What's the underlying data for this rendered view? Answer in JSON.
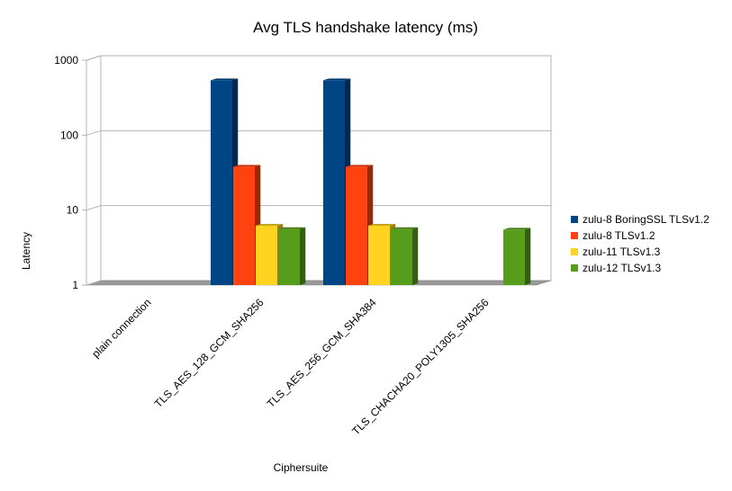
{
  "chart_data": {
    "type": "bar",
    "title": "Avg TLS handshake latency (ms)",
    "xlabel": "Ciphersuite",
    "ylabel": "Latency",
    "yscale": "log",
    "ylim": [
      1,
      1000
    ],
    "yticks": [
      1,
      10,
      100,
      1000
    ],
    "grid": true,
    "legend_position": "right",
    "categories": [
      "plain connection",
      "TLS_AES_128_GCM_SHA256",
      "TLS_AES_256_GCM_SHA384",
      "TLS_CHACHA20_POLY1305_SHA256"
    ],
    "series": [
      {
        "name": "zulu-8 BoringSSL TLSv1.2",
        "color": "#004586",
        "values": [
          null,
          540,
          540,
          null
        ]
      },
      {
        "name": "zulu-8 TLSv1.2",
        "color": "#ff420e",
        "values": [
          null,
          38,
          38,
          null
        ]
      },
      {
        "name": "zulu-11 TLSv1.3",
        "color": "#ffd320",
        "values": [
          null,
          6.2,
          6.2,
          null
        ]
      },
      {
        "name": "zulu-12 TLSv1.3",
        "color": "#579d1c",
        "values": [
          null,
          5.6,
          5.6,
          5.5
        ]
      }
    ]
  }
}
